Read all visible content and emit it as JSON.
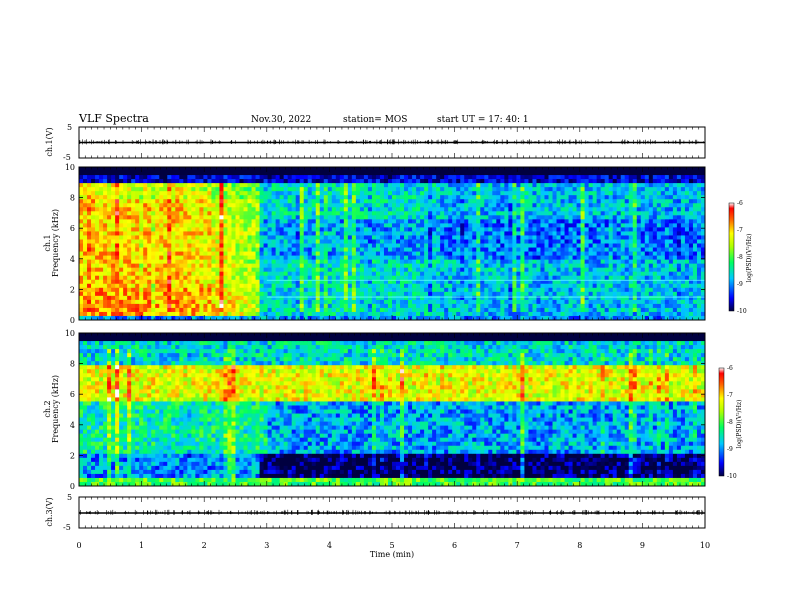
{
  "header": {
    "title": "VLF Spectra",
    "date": "Nov.30, 2022",
    "station": "station= MOS",
    "start_ut": "start  UT  =   17: 40: 1"
  },
  "chart_data": [
    {
      "type": "line",
      "name": "ch1-voltage",
      "ylabel": "ch.1(V)",
      "xlim": [
        0,
        10
      ],
      "ylim": [
        -5,
        5
      ],
      "yticks": [
        "5",
        "-5"
      ],
      "approx_level": -0.5
    },
    {
      "type": "heatmap",
      "name": "ch1-spectrogram",
      "ylabel": "ch.1\nFrequency (kHz)",
      "xlim": [
        0,
        10
      ],
      "ylim": [
        0,
        10
      ],
      "yticks": [
        "0",
        "2",
        "4",
        "6",
        "8",
        "10"
      ],
      "colorbar": {
        "label": "log(PSD)(V²/Hz)",
        "range": [
          -10,
          -6
        ],
        "ticks": [
          "-6",
          "-7",
          "-8",
          "-9",
          "-10"
        ]
      },
      "description_bands": [
        {
          "freq_khz": [
            0.3,
            9.0
          ],
          "time_min": [
            0,
            3.0
          ],
          "log_psd": -7.0
        },
        {
          "freq_khz": [
            0.3,
            9.0
          ],
          "time_min": [
            3.0,
            10
          ],
          "log_psd": -8.7
        },
        {
          "freq_khz": [
            9.0,
            10
          ],
          "time_min": [
            0,
            10
          ],
          "log_psd": -10
        }
      ]
    },
    {
      "type": "heatmap",
      "name": "ch2-spectrogram",
      "ylabel": "ch.2\nFrequency (kHz)",
      "xlim": [
        0,
        10
      ],
      "ylim": [
        0,
        10
      ],
      "yticks": [
        "0",
        "2",
        "4",
        "6",
        "8",
        "10"
      ],
      "colorbar": {
        "label": "log(PSD)(V²/Hz)",
        "range": [
          -10,
          -6
        ],
        "ticks": [
          "-6",
          "-7",
          "-8",
          "-9",
          "-10"
        ]
      },
      "description_bands": [
        {
          "freq_khz": [
            5.5,
            8.0
          ],
          "time_min": [
            0,
            10
          ],
          "log_psd": -7.2
        },
        {
          "freq_khz": [
            0.8,
            5.5
          ],
          "time_min": [
            0,
            10
          ],
          "log_psd": -8.5
        },
        {
          "freq_khz": [
            0.8,
            2.0
          ],
          "time_min": [
            3.0,
            10
          ],
          "log_psd": -10
        }
      ]
    },
    {
      "type": "line",
      "name": "ch3-voltage",
      "ylabel": "ch.3(V)",
      "xlim": [
        0,
        10
      ],
      "ylim": [
        -5,
        5
      ],
      "yticks": [
        "5",
        "-5"
      ],
      "approx_level": -0.5
    }
  ],
  "xaxis": {
    "label": "Time (min)",
    "ticks": [
      "0",
      "1",
      "2",
      "3",
      "4",
      "5",
      "6",
      "7",
      "8",
      "9",
      "10"
    ]
  },
  "colors": {
    "colormap": [
      "#000080",
      "#0000ff",
      "#00c0ff",
      "#00ff80",
      "#80ff00",
      "#ffff00",
      "#ff8000",
      "#ff0000",
      "#ffffff"
    ]
  }
}
